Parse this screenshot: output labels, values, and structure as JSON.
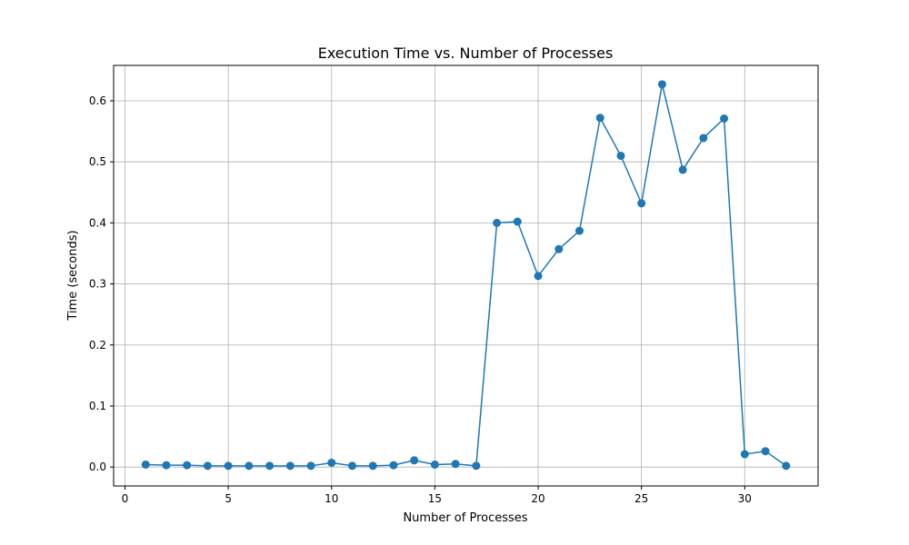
{
  "chart_data": {
    "type": "line",
    "title": "Execution Time vs. Number of Processes",
    "xlabel": "Number of Processes",
    "ylabel": "Time (seconds)",
    "xlim": [
      -0.55,
      33.55
    ],
    "ylim": [
      -0.031,
      0.658
    ],
    "xticks": [
      0,
      5,
      10,
      15,
      20,
      25,
      30
    ],
    "xtick_labels": [
      "0",
      "5",
      "10",
      "15",
      "20",
      "25",
      "30"
    ],
    "yticks": [
      0.0,
      0.1,
      0.2,
      0.3,
      0.4,
      0.5,
      0.6
    ],
    "ytick_labels": [
      "0.0",
      "0.1",
      "0.2",
      "0.3",
      "0.4",
      "0.5",
      "0.6"
    ],
    "grid": true,
    "color": "#1f77b4",
    "marker": "circle",
    "x": [
      1,
      2,
      3,
      4,
      5,
      6,
      7,
      8,
      9,
      10,
      11,
      12,
      13,
      14,
      15,
      16,
      17,
      18,
      19,
      20,
      21,
      22,
      23,
      24,
      25,
      26,
      27,
      28,
      29,
      30,
      31,
      32
    ],
    "y": [
      0.004,
      0.003,
      0.003,
      0.002,
      0.002,
      0.002,
      0.002,
      0.002,
      0.002,
      0.007,
      0.002,
      0.002,
      0.003,
      0.011,
      0.004,
      0.005,
      0.002,
      0.4,
      0.402,
      0.313,
      0.357,
      0.387,
      0.572,
      0.51,
      0.432,
      0.627,
      0.487,
      0.539,
      0.571,
      0.021,
      0.026,
      0.002
    ]
  }
}
